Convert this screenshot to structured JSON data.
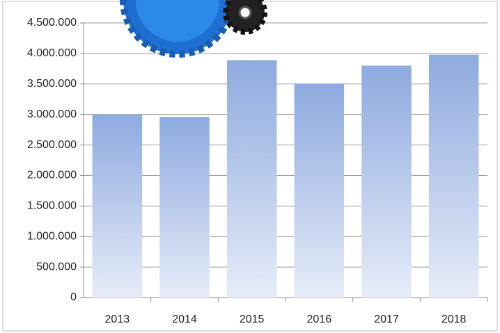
{
  "chart_data": {
    "type": "bar",
    "categories": [
      "2013",
      "2014",
      "2015",
      "2016",
      "2017",
      "2018"
    ],
    "values": [
      3000000,
      2960000,
      3890000,
      3500000,
      3800000,
      3980000
    ],
    "color": "#8eaadf",
    "ylim": [
      0,
      4500000
    ],
    "yticks": [
      0,
      {
        "value": 500000,
        "label": "500.000"
      },
      {
        "value": 1000000,
        "label": "1.000.000"
      },
      {
        "value": 1500000,
        "label": "1.500.000"
      },
      {
        "value": 2000000,
        "label": "2.000.000"
      },
      {
        "value": 2500000,
        "label": "2.500.000"
      },
      {
        "value": 3000000,
        "label": "3.000.000"
      },
      {
        "value": 3500000,
        "label": "3.500.000"
      },
      {
        "value": 4000000,
        "label": "4.000.000"
      },
      {
        "value": 4500000,
        "label": "4.500.000"
      }
    ],
    "grid": true
  }
}
